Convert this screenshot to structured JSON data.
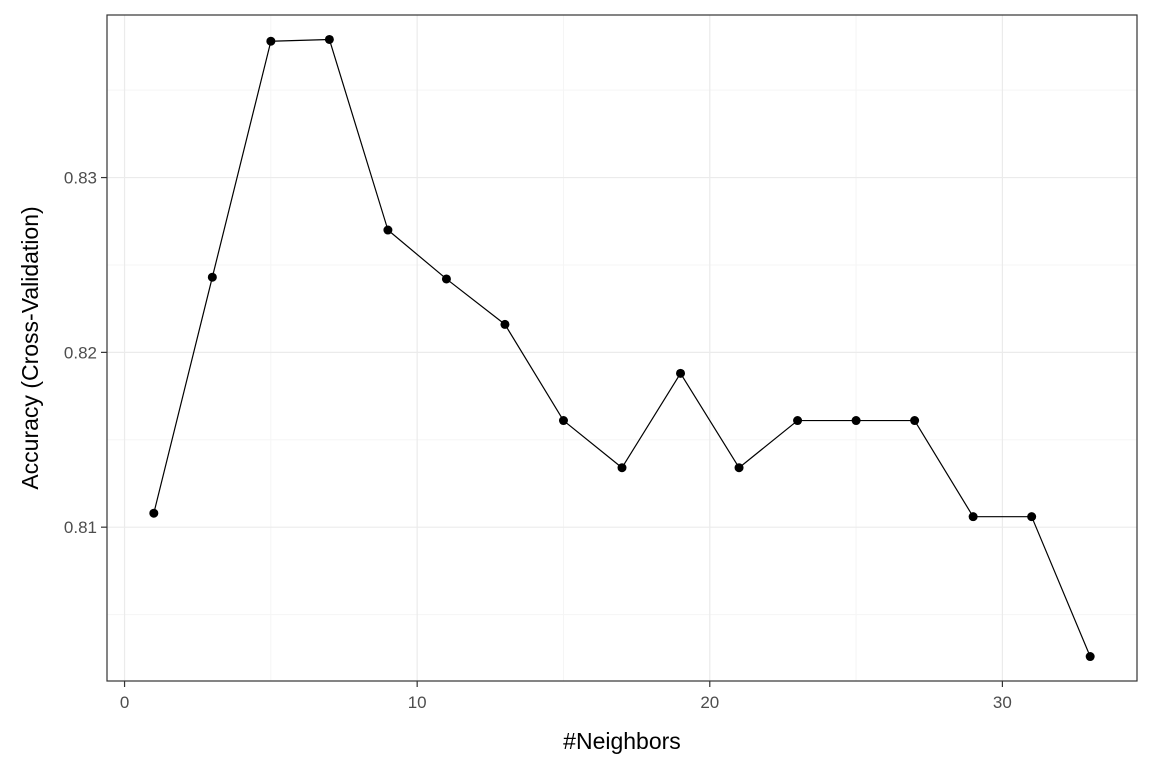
{
  "chart_data": {
    "type": "line",
    "title": "",
    "xlabel": "#Neighbors",
    "ylabel": "Accuracy (Cross-Validation)",
    "xlim": [
      -0.6,
      34.6
    ],
    "ylim": [
      0.8012,
      0.8393
    ],
    "x_ticks": [
      0,
      10,
      20,
      30
    ],
    "y_ticks": [
      0.81,
      0.82,
      0.83
    ],
    "x_tick_labels": [
      "0",
      "10",
      "20",
      "30"
    ],
    "y_tick_labels": [
      "0.81",
      "0.82",
      "0.83"
    ],
    "grid": true,
    "legend": "none",
    "series": [
      {
        "x": [
          1,
          3,
          5,
          7,
          9,
          11,
          13,
          15,
          17,
          19,
          21,
          23,
          25,
          27,
          29,
          31,
          33
        ],
        "y": [
          0.8108,
          0.8243,
          0.8378,
          0.8379,
          0.827,
          0.8242,
          0.8216,
          0.8161,
          0.8134,
          0.8188,
          0.8134,
          0.8161,
          0.8161,
          0.8161,
          0.8106,
          0.8106,
          0.8026
        ]
      }
    ]
  },
  "colors": {
    "line": "#000000",
    "point": "#000000",
    "grid_major": "#ebebeb",
    "grid_minor": "#f5f5f5",
    "panel_border": "#333333",
    "tick_text": "#4d4d4d"
  }
}
